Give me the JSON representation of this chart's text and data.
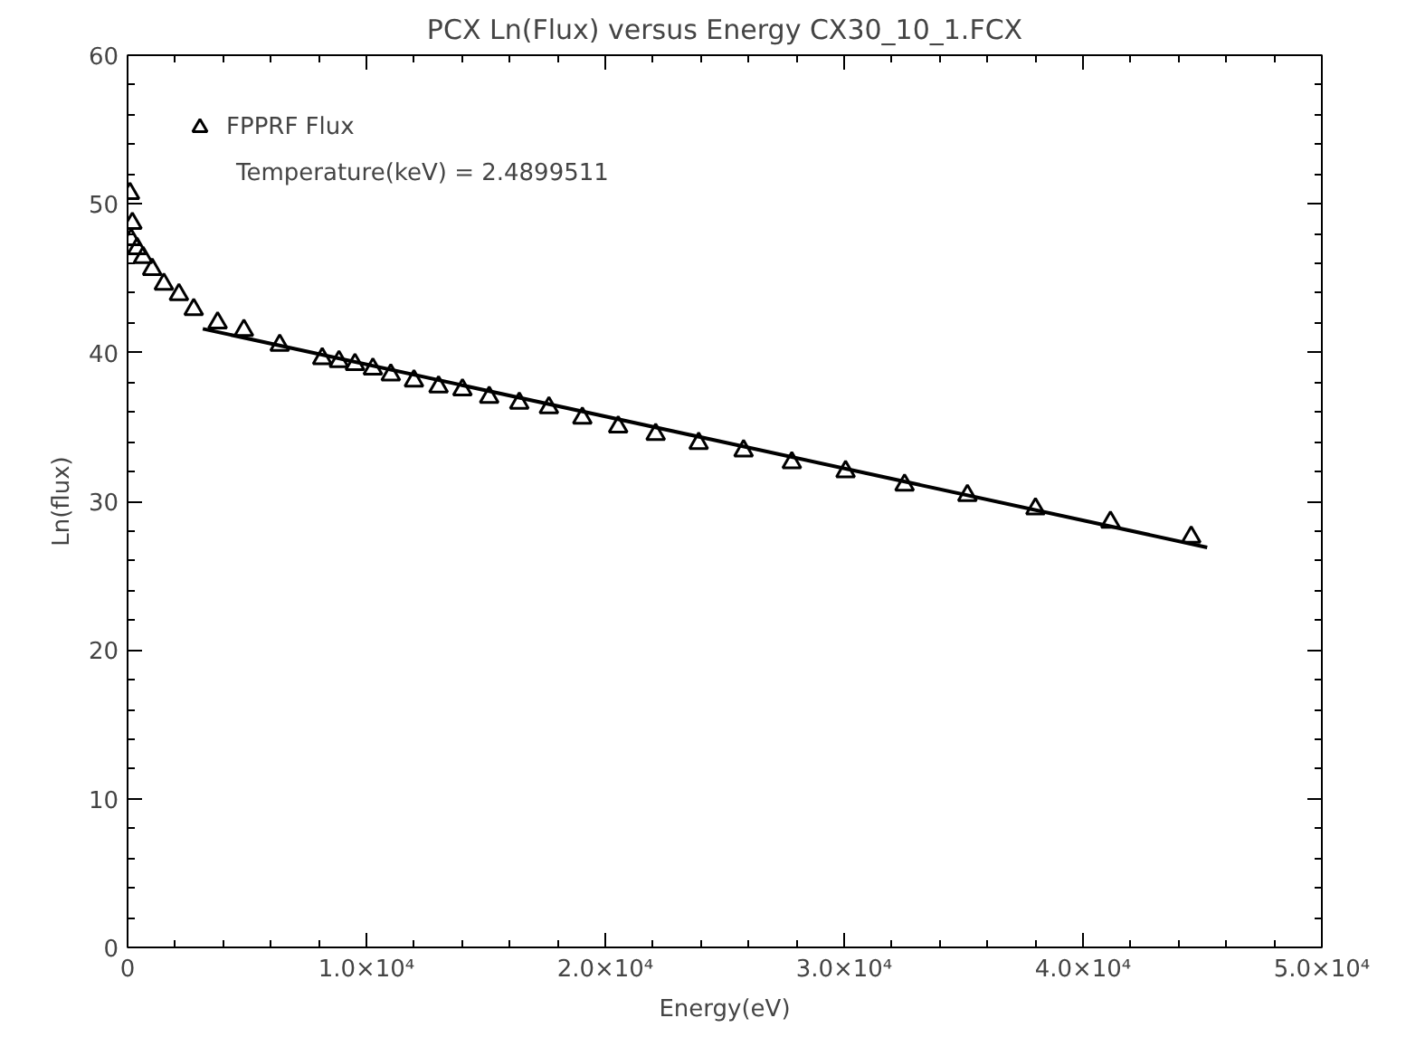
{
  "chart_data": {
    "type": "scatter",
    "title": "PCX Ln(Flux) versus Energy CX30_10_1.FCX",
    "xlabel": "Energy(eV)",
    "ylabel": "Ln(flux)",
    "xlim": [
      0,
      50000
    ],
    "ylim": [
      0,
      60
    ],
    "xticks": [
      0,
      {
        "value": 10000,
        "label": "1.0×10⁴"
      },
      {
        "value": 20000,
        "label": "2.0×10⁴"
      },
      {
        "value": 30000,
        "label": "3.0×10⁴"
      },
      {
        "value": 40000,
        "label": "4.0×10⁴"
      },
      {
        "value": 50000,
        "label": "5.0×10⁴"
      }
    ],
    "yticks": [
      0,
      10,
      20,
      30,
      40,
      50,
      60
    ],
    "grid": false,
    "legend": "top left",
    "annotations": [
      "Temperature(keV) =      2.4899511"
    ],
    "series": [
      {
        "name": "FPPRF Flux",
        "marker": "triangle",
        "color": "#000000",
        "x": [
          100,
          150,
          200,
          400,
          650,
          1030,
          1520,
          2150,
          2770,
          3770,
          4870,
          6370,
          8150,
          8850,
          9520,
          10270,
          11020,
          11990,
          13020,
          14020,
          15140,
          16400,
          17640,
          19040,
          20540,
          22110,
          23910,
          25790,
          27810,
          30060,
          32530,
          35160,
          38010,
          41150,
          44530
        ],
        "values": [
          50.7,
          47.6,
          48.7,
          47.0,
          46.4,
          45.6,
          44.6,
          43.9,
          42.9,
          42.0,
          41.5,
          40.5,
          39.6,
          39.4,
          39.2,
          38.9,
          38.5,
          38.1,
          37.7,
          37.5,
          37.0,
          36.6,
          36.3,
          35.6,
          35.0,
          34.5,
          33.9,
          33.4,
          32.6,
          32.0,
          31.1,
          30.4,
          29.5,
          28.6,
          27.6
        ]
      },
      {
        "type": "line",
        "color": "#000000",
        "line_style": "solid",
        "x": [
          3150,
          45200
        ],
        "values": [
          41.6,
          26.9
        ]
      }
    ]
  }
}
